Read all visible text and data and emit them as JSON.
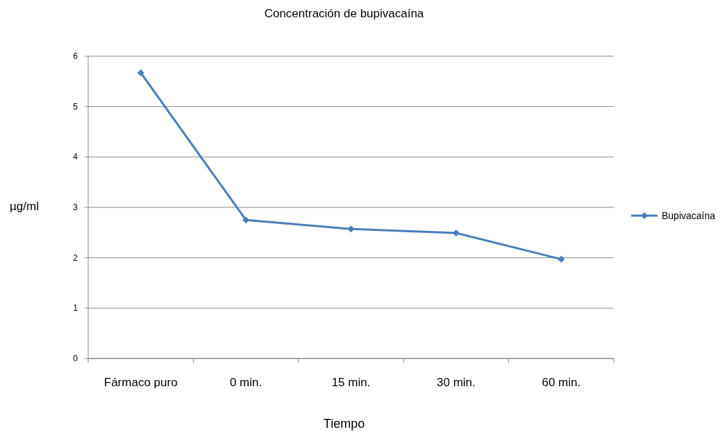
{
  "chart_data": {
    "type": "line",
    "title": "Concentración de bupivacaína",
    "xlabel": "Tiempo",
    "ylabel": "µg/ml",
    "categories": [
      "Fármaco puro",
      "0 min.",
      "15 min.",
      "30 min.",
      "60 min."
    ],
    "series": [
      {
        "name": "Bupivacaína",
        "color": "#4a7ebb",
        "values": [
          5.67,
          2.75,
          2.57,
          2.49,
          1.97
        ]
      }
    ],
    "ylim": [
      0,
      6
    ],
    "yticks": [
      0,
      1,
      2,
      3,
      4,
      5,
      6
    ],
    "grid": "y",
    "legend": "right",
    "marker": "diamond",
    "line_style": "solid"
  }
}
